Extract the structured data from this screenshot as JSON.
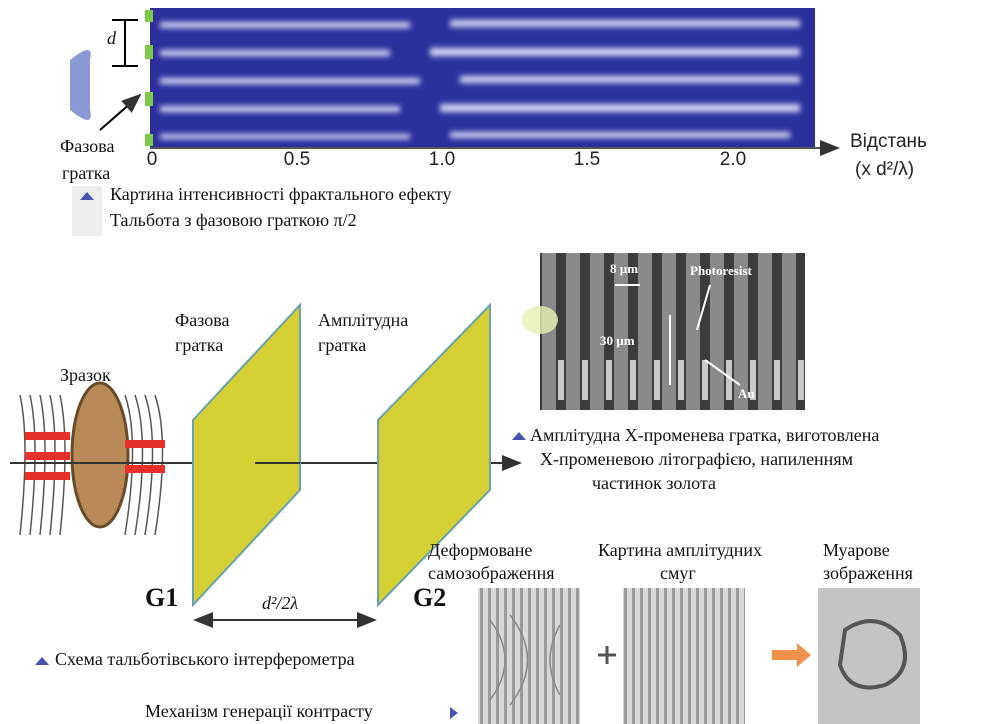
{
  "top_figure": {
    "d_label": "d",
    "grating_label": [
      "Фазова",
      "гратка"
    ],
    "axis_ticks": [
      "0",
      "0.5",
      "1.0",
      "1.5",
      "2.0"
    ],
    "axis_title": [
      "Відстань",
      "(x d²/λ)"
    ],
    "caption": [
      "Картина інтенсивності фрактального ефекту",
      "Тальбота з фазовою граткою π/2"
    ]
  },
  "sem_image": {
    "labels": [
      "8 µm",
      "Photoresist",
      "30 µm",
      "Au"
    ],
    "caption": [
      "Амплітудна Х-променева гратка, виготовлена",
      "Х-променевою літографією, напиленням",
      "частинок золота"
    ]
  },
  "interferometer": {
    "sample_label": "Зразок",
    "phase_grating": [
      "Фазова",
      "гратка"
    ],
    "amplitude_grating": [
      "Амплітудна",
      "гратка"
    ],
    "g1": "G1",
    "g2": "G2",
    "distance": "d²/2λ",
    "caption": "Схема тальботівського інтерферометра"
  },
  "contrast": {
    "panels": [
      [
        "Деформоване",
        "самозображення"
      ],
      [
        "Картина амплітудних",
        "смуг"
      ],
      [
        "Муарове",
        "зображення"
      ]
    ],
    "caption": "Механізм генерації контрасту"
  }
}
